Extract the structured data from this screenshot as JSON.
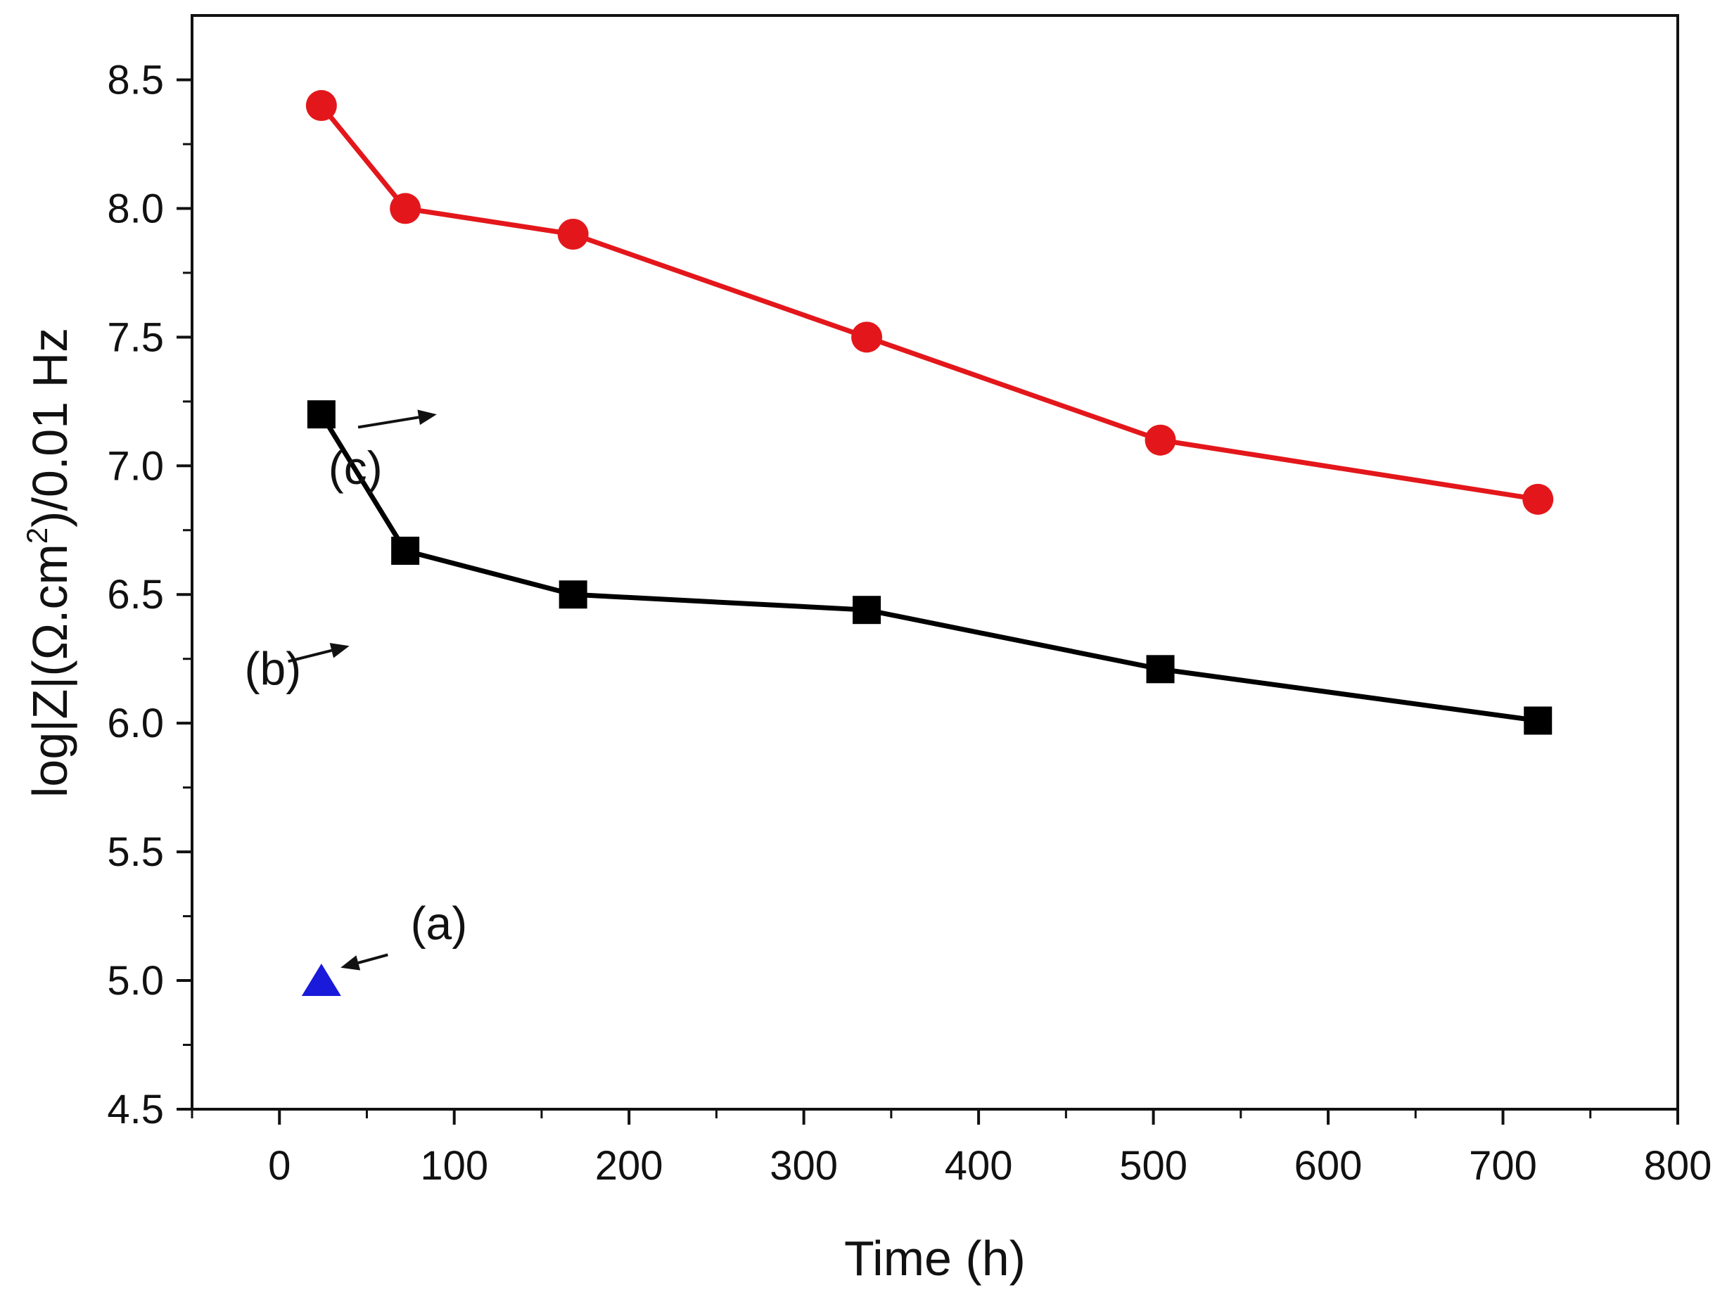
{
  "chart_data": {
    "type": "line",
    "title": "",
    "xlabel": "Time (h)",
    "ylabel_parts": {
      "prefix": "log|Z|(Ω.cm",
      "superscript": "2",
      "suffix": ")/0.01 Hz"
    },
    "xlim": [
      -50,
      800
    ],
    "ylim": [
      4.5,
      8.75
    ],
    "x_ticks": [
      0,
      100,
      200,
      300,
      400,
      500,
      600,
      700,
      800
    ],
    "x_tick_labels": [
      "0",
      "100",
      "200",
      "300",
      "400",
      "500",
      "600",
      "700",
      "800"
    ],
    "x_minor_ticks": [
      -50,
      50,
      150,
      250,
      350,
      450,
      550,
      650,
      750
    ],
    "y_ticks": [
      4.5,
      5.0,
      5.5,
      6.0,
      6.5,
      7.0,
      7.5,
      8.0,
      8.5
    ],
    "y_tick_labels": [
      "4.5",
      "5.0",
      "5.5",
      "6.0",
      "6.5",
      "7.0",
      "7.5",
      "8.0",
      "8.5"
    ],
    "y_minor_ticks": [
      4.75,
      5.25,
      5.75,
      6.25,
      6.75,
      7.25,
      7.75,
      8.25
    ],
    "grid": false,
    "series": [
      {
        "name": "(a)",
        "color": "#1a1adb",
        "marker": "triangle",
        "line": false,
        "x": [
          24
        ],
        "y": [
          5.0
        ]
      },
      {
        "name": "(b)",
        "color": "#000000",
        "marker": "square",
        "line": true,
        "x": [
          24,
          72,
          168,
          336,
          504,
          720
        ],
        "y": [
          7.2,
          6.67,
          6.5,
          6.44,
          6.21,
          6.01
        ]
      },
      {
        "name": "(c)",
        "color": "#e3171b",
        "marker": "circle",
        "line": true,
        "x": [
          24,
          72,
          168,
          336,
          504,
          720
        ],
        "y": [
          8.4,
          8.0,
          7.9,
          7.5,
          7.1,
          6.87
        ]
      }
    ],
    "annotations": [
      {
        "label": "(a)",
        "text_x": 75,
        "text_y": 5.16,
        "arrow_from": [
          62,
          5.1
        ],
        "arrow_to": [
          35,
          5.05
        ]
      },
      {
        "label": "(b)",
        "text_x": -20,
        "text_y": 6.15,
        "arrow_from": [
          5,
          6.24
        ],
        "arrow_to": [
          40,
          6.3
        ]
      },
      {
        "label": "(c)",
        "text_x": 28,
        "text_y": 6.93,
        "arrow_from": [
          45,
          7.15
        ],
        "arrow_to": [
          90,
          7.2
        ]
      }
    ]
  }
}
